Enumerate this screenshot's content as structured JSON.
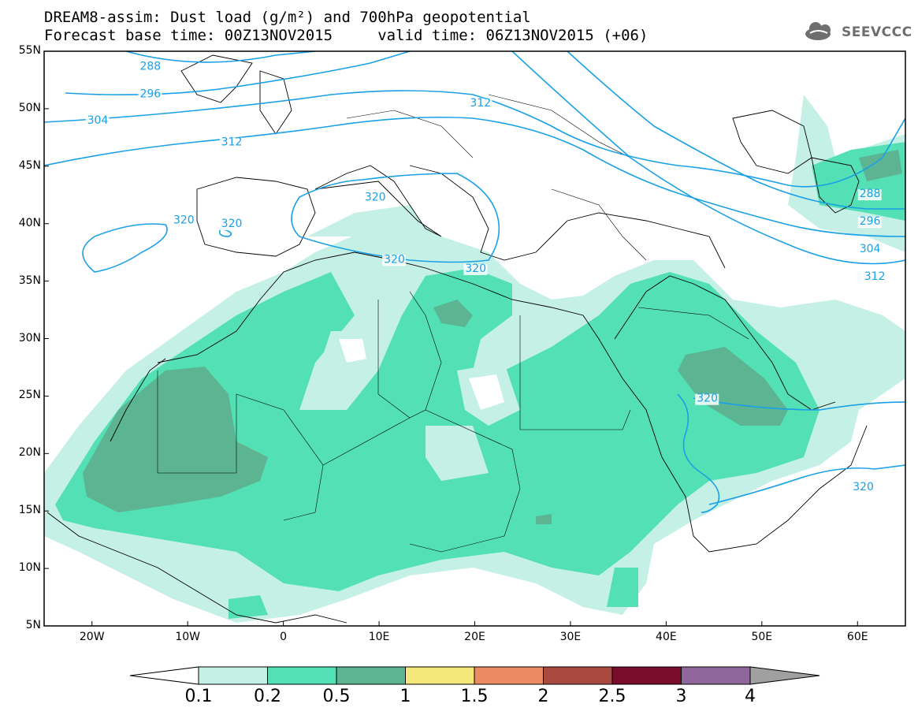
{
  "title": {
    "line1": "DREAM8-assim: Dust load (g/m²) and 700hPa geopotential",
    "line2": "Forecast base time: 00Z13NOV2015     valid time: 06Z13NOV2015 (+06)"
  },
  "logo": {
    "text": "SEEVCCC",
    "icon": "cloud-icon"
  },
  "axes": {
    "lat_labels": [
      "55N",
      "50N",
      "45N",
      "40N",
      "35N",
      "30N",
      "25N",
      "20N",
      "15N",
      "10N",
      "5N"
    ],
    "lat_values": [
      55,
      50,
      45,
      40,
      35,
      30,
      25,
      20,
      15,
      10,
      5
    ],
    "lon_labels": [
      "20W",
      "10W",
      "0",
      "10E",
      "20E",
      "30E",
      "40E",
      "50E",
      "60E"
    ],
    "lon_values": [
      -20,
      -10,
      0,
      10,
      20,
      30,
      40,
      50,
      60
    ],
    "lon_range": [
      -25,
      65
    ],
    "lat_range": [
      5,
      55
    ]
  },
  "contour_labels": [
    {
      "text": "288",
      "lon": -15,
      "lat": 53.4
    },
    {
      "text": "296",
      "lon": -15,
      "lat": 51.0
    },
    {
      "text": "304",
      "lon": -20.5,
      "lat": 48.7
    },
    {
      "text": "312",
      "lon": -6.5,
      "lat": 46.8
    },
    {
      "text": "312",
      "lon": 19.5,
      "lat": 50.2
    },
    {
      "text": "320",
      "lon": -11.5,
      "lat": 40.0
    },
    {
      "text": "320",
      "lon": -6.5,
      "lat": 39.7
    },
    {
      "text": "320",
      "lon": 8.5,
      "lat": 42.0
    },
    {
      "text": "320",
      "lon": 10.5,
      "lat": 36.6
    },
    {
      "text": "320",
      "lon": 19.0,
      "lat": 35.8
    },
    {
      "text": "320",
      "lon": 43.2,
      "lat": 24.5
    },
    {
      "text": "320",
      "lon": 59.5,
      "lat": 16.8
    },
    {
      "text": "288",
      "lon": 60.2,
      "lat": 42.3
    },
    {
      "text": "296",
      "lon": 60.2,
      "lat": 39.9
    },
    {
      "text": "304",
      "lon": 60.2,
      "lat": 37.5
    },
    {
      "text": "312",
      "lon": 60.7,
      "lat": 35.1
    }
  ],
  "colorbar": {
    "ticks": [
      "0.1",
      "0.2",
      "0.5",
      "1",
      "1.5",
      "2",
      "2.5",
      "3",
      "4"
    ],
    "colors": [
      "#c5f0e6",
      "#52e0b4",
      "#5cb493",
      "#f5e87a",
      "#ec8a64",
      "#a84a40",
      "#7a0c2c",
      "#8e669c"
    ],
    "under_color": "#ffffff",
    "over_color": "#a0a0a0"
  },
  "colors": {
    "contour": "#1aa0e6",
    "border": "#000000",
    "dust_low": "#c5f0e6",
    "dust_mid": "#52e0b4",
    "dust_high": "#5cb493"
  }
}
